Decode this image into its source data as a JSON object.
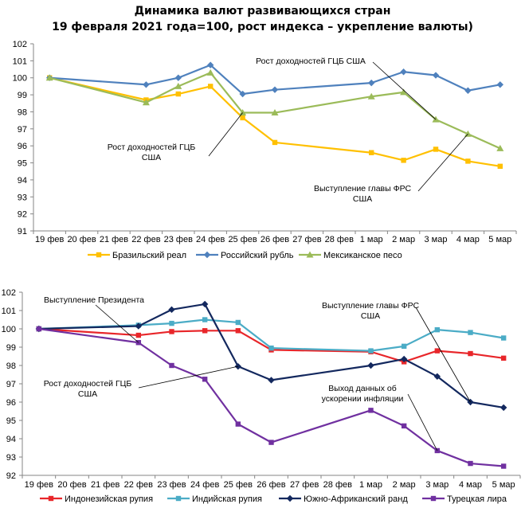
{
  "title_line1": "Динамика валют развивающихся стран",
  "title_line2": "19 февраля 2021 года=100, рост индекса – укрепление валюты)",
  "chart_data": [
    {
      "type": "line",
      "title": "",
      "xlabel": "",
      "ylabel": "",
      "ylim": [
        91,
        102
      ],
      "yticks": [
        "91",
        "92",
        "93",
        "94",
        "95",
        "96",
        "97",
        "98",
        "99",
        "100",
        "101",
        "102"
      ],
      "categories": [
        "19 фев",
        "20 фев",
        "21 фев",
        "22 фев",
        "23 фев",
        "24 фев",
        "25 фев",
        "26 фев",
        "27 фев",
        "28 фев",
        "1 мар",
        "2 мар",
        "3 мар",
        "4 мар",
        "5 мар"
      ],
      "legend_position": "bottom",
      "grid": false,
      "series": [
        {
          "name": "Бразильский реал",
          "color": "#FFC000",
          "marker": "square",
          "values": [
            100.0,
            null,
            null,
            98.7,
            99.05,
            99.5,
            97.65,
            96.2,
            null,
            null,
            95.6,
            95.15,
            95.8,
            95.1,
            94.8
          ]
        },
        {
          "name": "Российский рубль",
          "color": "#4F81BD",
          "marker": "diamond",
          "values": [
            100.0,
            null,
            null,
            99.6,
            100.0,
            100.75,
            99.05,
            99.3,
            null,
            null,
            99.7,
            100.35,
            100.15,
            99.25,
            99.6
          ]
        },
        {
          "name": "Мексиканское песо",
          "color": "#9BBB59",
          "marker": "triangle",
          "values": [
            100.0,
            null,
            null,
            98.55,
            99.5,
            100.3,
            97.95,
            97.95,
            null,
            null,
            98.9,
            99.15,
            97.55,
            96.7,
            95.85
          ]
        }
      ],
      "annotations": [
        {
          "lines": [
            "Рост доходностей ГЦБ США"
          ],
          "target_category": "3 мар",
          "target_series": 2
        },
        {
          "lines": [
            "Рост доходностей ГЦБ",
            "США"
          ],
          "target_category": "25 фев",
          "target_series": 2
        },
        {
          "lines": [
            "Выступление главы ФРС",
            "США"
          ],
          "target_category": "4 мар",
          "target_series": 2
        }
      ]
    },
    {
      "type": "line",
      "title": "",
      "xlabel": "",
      "ylabel": "",
      "ylim": [
        92,
        102
      ],
      "yticks": [
        "92",
        "93",
        "94",
        "95",
        "96",
        "97",
        "98",
        "99",
        "100",
        "101",
        "102"
      ],
      "categories": [
        "19 фев",
        "20 фев",
        "21 фев",
        "22 фев",
        "23 фев",
        "24 фев",
        "25 фев",
        "26 фев",
        "27 фев",
        "28 фев",
        "1 мар",
        "2 мар",
        "3 мар",
        "4 мар",
        "5 мар"
      ],
      "legend_position": "bottom",
      "grid": false,
      "series": [
        {
          "name": "Индонезийская рупия",
          "color": "#E8262A",
          "marker": "square",
          "values": [
            100.0,
            null,
            null,
            99.65,
            99.85,
            99.9,
            99.9,
            98.85,
            null,
            null,
            98.75,
            98.2,
            98.8,
            98.65,
            98.4
          ]
        },
        {
          "name": "Индийская рупия",
          "color": "#4BACC6",
          "marker": "square",
          "values": [
            100.0,
            null,
            null,
            100.2,
            100.3,
            100.5,
            100.35,
            98.95,
            null,
            null,
            98.8,
            99.05,
            99.95,
            99.8,
            99.5
          ]
        },
        {
          "name": "Южно-Африканский ранд",
          "color": "#13285E",
          "marker": "diamond",
          "values": [
            100.0,
            null,
            null,
            100.15,
            101.05,
            101.35,
            97.95,
            97.2,
            null,
            null,
            98.0,
            98.35,
            97.4,
            96.0,
            95.7
          ]
        },
        {
          "name": "Турецкая лира",
          "color": "#7030A0",
          "marker": "square",
          "values": [
            100.0,
            null,
            null,
            99.25,
            98.0,
            97.25,
            94.8,
            93.8,
            null,
            null,
            95.55,
            94.7,
            93.35,
            92.65,
            92.5
          ]
        }
      ],
      "annotations": [
        {
          "lines": [
            "Выступление Президента"
          ],
          "target_category": "22 фев",
          "target_series": 3
        },
        {
          "lines": [
            "Рост доходностей ГЦБ",
            "США"
          ],
          "target_category": "25 фев",
          "target_series": 2
        },
        {
          "lines": [
            "Выступление главы ФРС",
            "США"
          ],
          "target_category": "4 мар",
          "target_series": 2
        },
        {
          "lines": [
            "Выход данных об",
            "ускорении инфляции"
          ],
          "target_category": "3 мар",
          "target_series": 3
        }
      ]
    }
  ]
}
